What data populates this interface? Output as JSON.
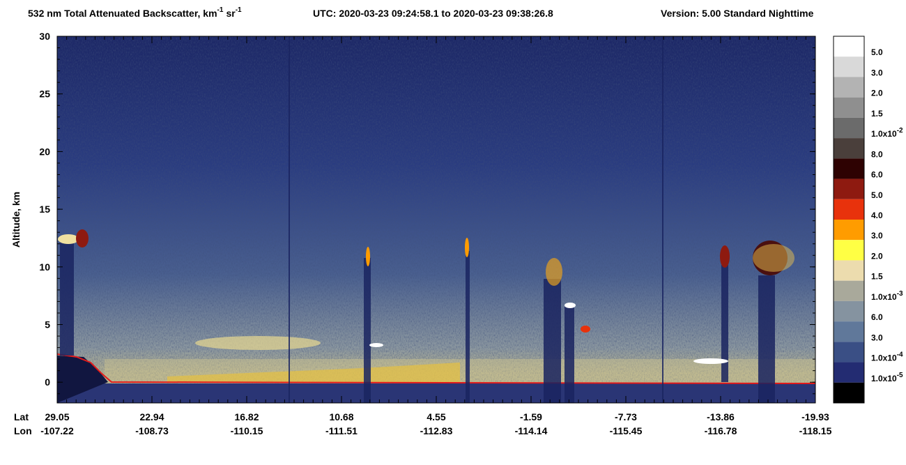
{
  "chart_data": {
    "type": "curtain",
    "title": {
      "main": "532 nm Total Attenuated Backscatter, km",
      "exp1": "-1",
      "unit2": "sr",
      "exp2": "-1",
      "utc": "UTC:  2020-03-23 09:24:58.1  to  2020-03-23 09:38:26.8",
      "version": "Version: 5.00  Standard  Nighttime"
    },
    "ylabel": "Altitude, km",
    "ylim": [
      -1.8,
      30
    ],
    "yticks": [
      0,
      5,
      10,
      15,
      20,
      25,
      30
    ],
    "x_row_labels": [
      "Lat",
      "Lon"
    ],
    "lat": [
      "29.05",
      "22.94",
      "16.82",
      "10.68",
      "4.55",
      "-1.59",
      "-7.73",
      "-13.86",
      "-19.93"
    ],
    "lon": [
      "-107.22",
      "-108.73",
      "-110.15",
      "-111.51",
      "-112.83",
      "-114.14",
      "-115.45",
      "-116.78",
      "-118.15"
    ],
    "colorbar": {
      "colors": [
        "#ffffff",
        "#d9d9d9",
        "#b3b3b3",
        "#8f8f8f",
        "#6b6b6b",
        "#4a3f3b",
        "#2e0202",
        "#8e1a10",
        "#e8320c",
        "#ff9c00",
        "#ffff44",
        "#ecdcae",
        "#a9a99b",
        "#8593a0",
        "#60789a",
        "#3a4f85",
        "#232c72",
        "#000000"
      ],
      "labels": [
        {
          "text": "5.0"
        },
        {
          "text": "3.0"
        },
        {
          "text": "2.0"
        },
        {
          "text": "1.5"
        },
        {
          "text": "1.0x10",
          "exp": "-2"
        },
        {
          "text": "8.0"
        },
        {
          "text": "6.0"
        },
        {
          "text": "5.0"
        },
        {
          "text": "4.0"
        },
        {
          "text": "3.0"
        },
        {
          "text": "2.0"
        },
        {
          "text": "1.5"
        },
        {
          "text": "1.0x10",
          "exp": "-3"
        },
        {
          "text": "6.0"
        },
        {
          "text": "3.0"
        },
        {
          "text": "1.0x10",
          "exp": "-4"
        },
        {
          "text": "1.0x10",
          "exp": "-5"
        }
      ]
    }
  }
}
